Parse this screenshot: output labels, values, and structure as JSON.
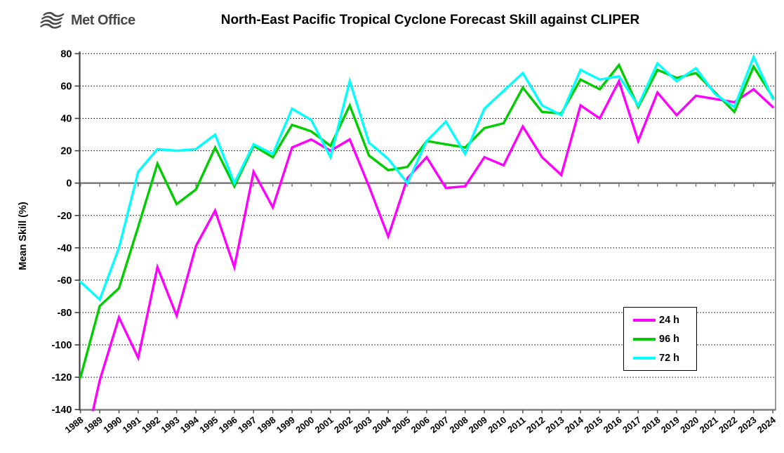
{
  "header": {
    "logo_text": "Met Office"
  },
  "chart_data": {
    "type": "line",
    "title": "North-East Pacific Tropical Cyclone Forecast Skill against CLIPER",
    "xlabel": "",
    "ylabel": "Mean Skill (%)",
    "ylim": [
      -140,
      80
    ],
    "ytick_step": 20,
    "grid": "horizontal dotted gridlines, solid gray zero line",
    "legend_position": "inside lower right",
    "categories": [
      "1988",
      "1989",
      "1990",
      "1991",
      "1992",
      "1993",
      "1994",
      "1995",
      "1996",
      "1997",
      "1998",
      "1999",
      "2000",
      "2001",
      "2002",
      "2003",
      "2004",
      "2005",
      "2006",
      "2007",
      "2008",
      "2009",
      "2010",
      "2011",
      "2012",
      "2013",
      "2014",
      "2015",
      "2016",
      "2017",
      "2018",
      "2019",
      "2020",
      "2021",
      "2022",
      "2023",
      "2024"
    ],
    "series": [
      {
        "name": "24 h",
        "color": "#ff00ff",
        "values": [
          -175,
          -122,
          -83,
          -108,
          -52,
          -82,
          -39,
          -17,
          -52,
          7,
          -15,
          22,
          27,
          20,
          27,
          -2,
          -33,
          3,
          16,
          -3,
          -2,
          16,
          11,
          35,
          16,
          5,
          48,
          40,
          63,
          26,
          56,
          42,
          54,
          52,
          50,
          58,
          47
        ]
      },
      {
        "name": "96 h",
        "color": "#00cc00",
        "values": [
          -120,
          -76,
          -65,
          -27,
          12,
          -13,
          -4,
          22,
          -2,
          23,
          16,
          36,
          32,
          23,
          48,
          17,
          8,
          10,
          26,
          24,
          22,
          34,
          37,
          59,
          44,
          43,
          64,
          58,
          73,
          47,
          70,
          65,
          68,
          56,
          44,
          72,
          53
        ]
      },
      {
        "name": "72 h",
        "color": "#00ffff",
        "values": [
          -61,
          -72,
          -40,
          7,
          21,
          20,
          21,
          30,
          0,
          24,
          18,
          46,
          39,
          16,
          63,
          25,
          15,
          0,
          26,
          38,
          18,
          46,
          57,
          68,
          48,
          42,
          70,
          64,
          66,
          48,
          74,
          63,
          71,
          55,
          47,
          78,
          52
        ]
      }
    ]
  }
}
